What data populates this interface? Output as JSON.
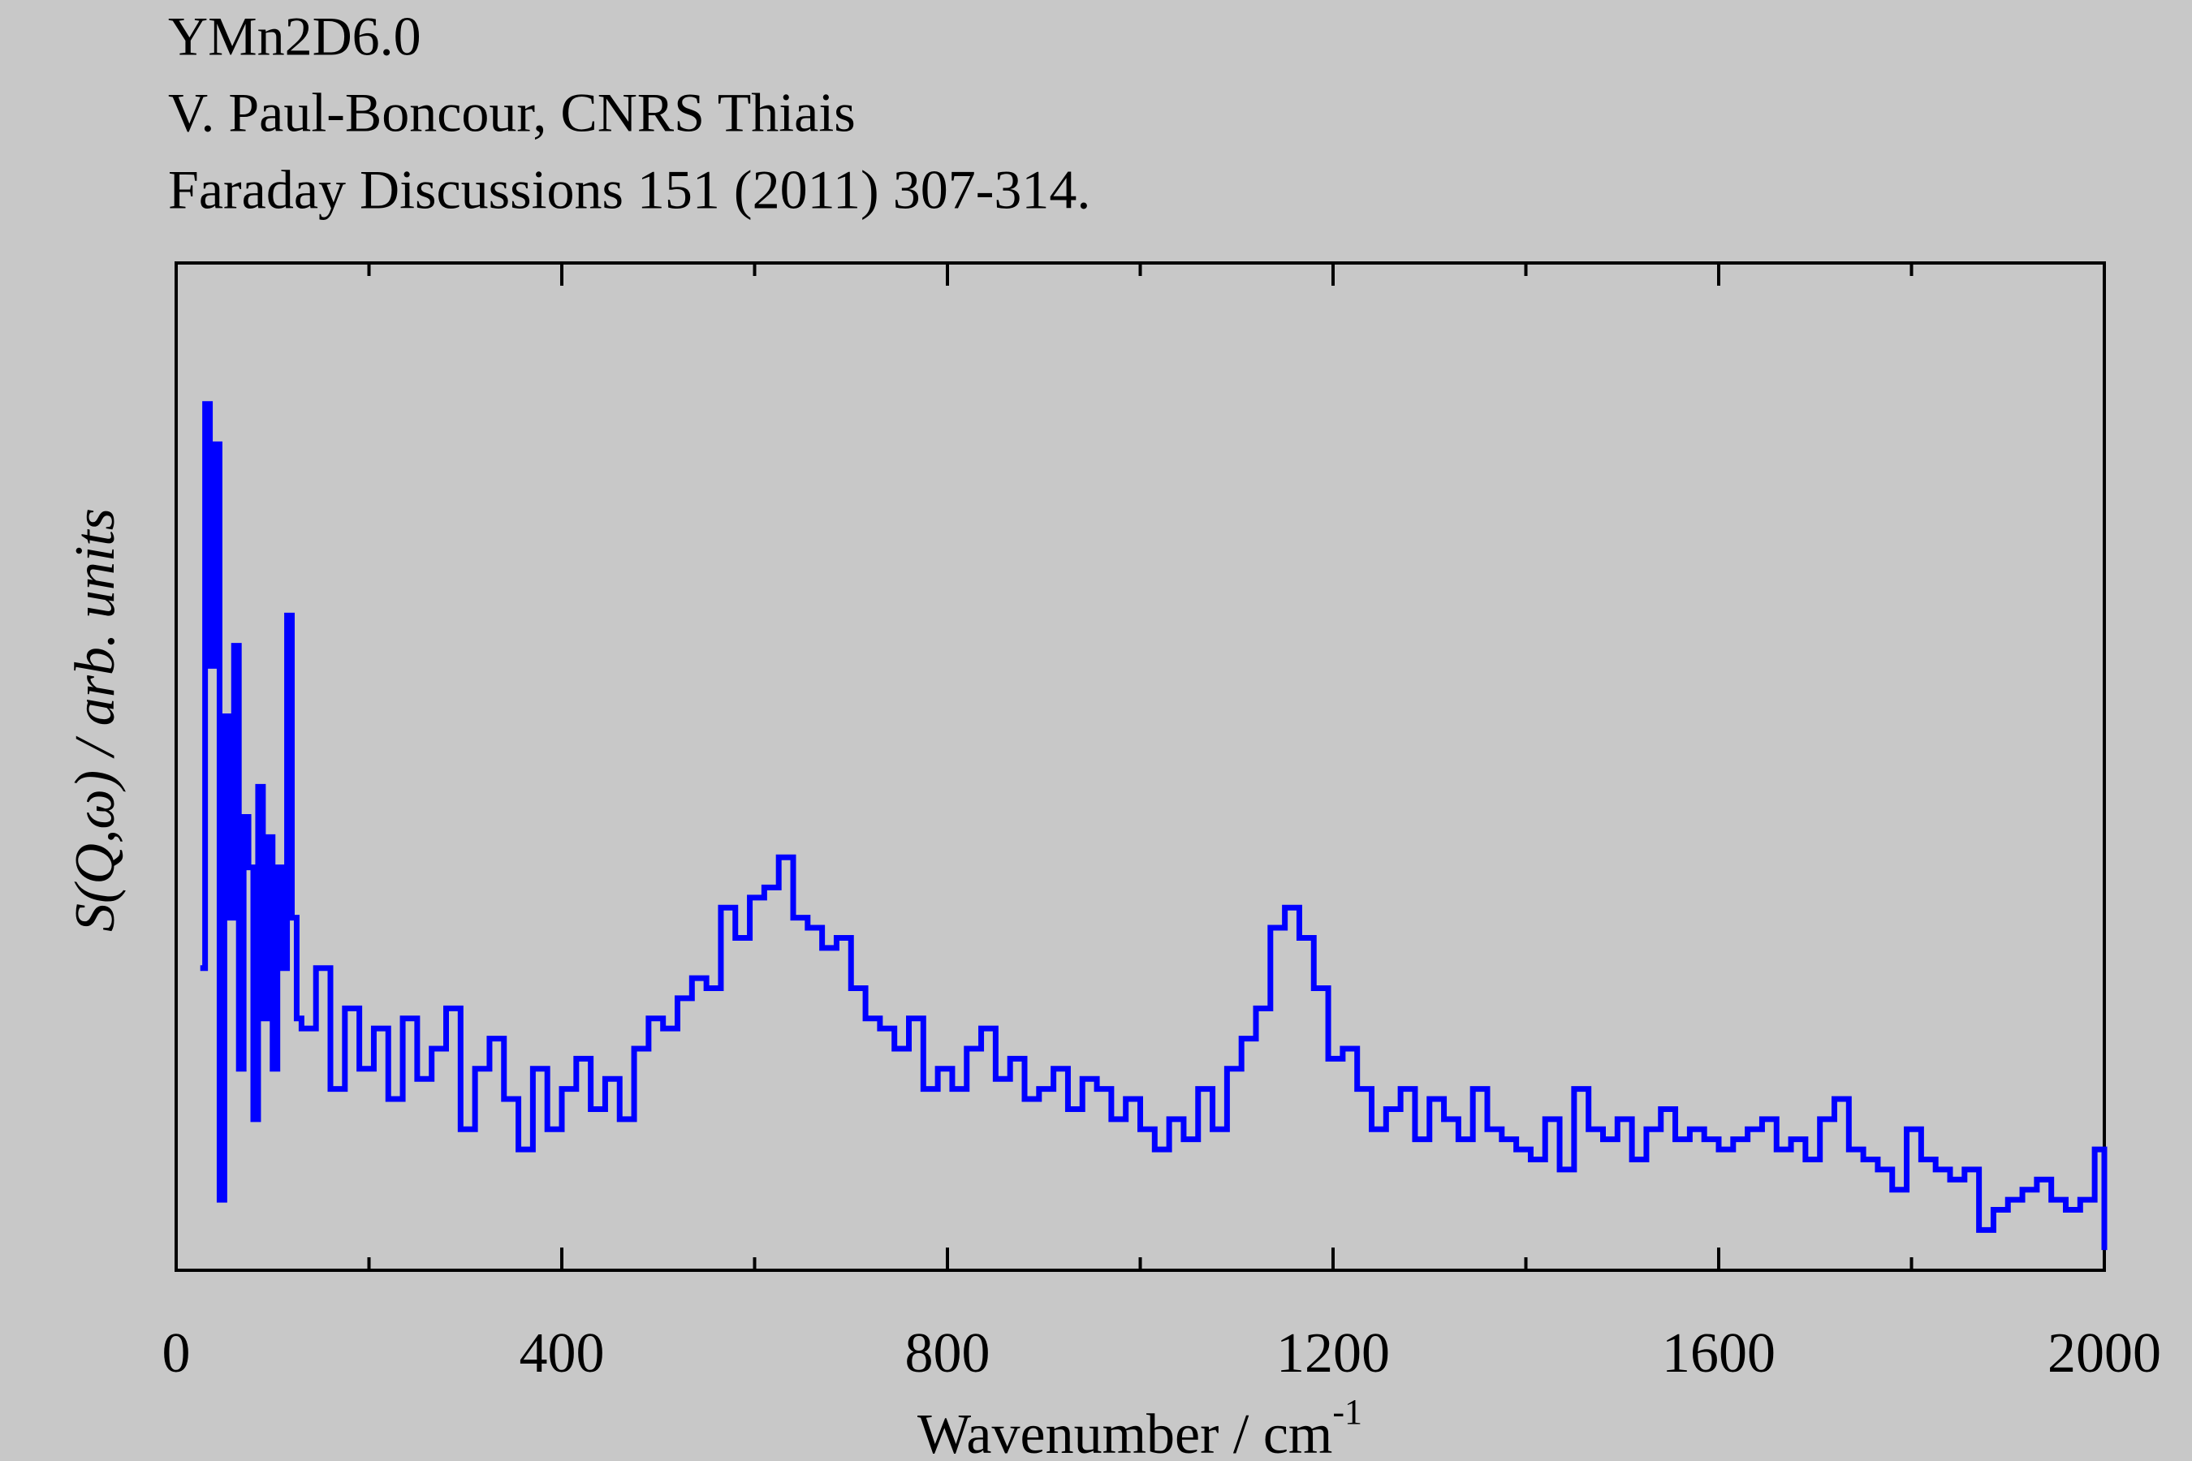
{
  "chart_data": {
    "type": "step",
    "title": "YMn2D6.0",
    "subtitle": [
      "V. Paul-Boncour, CNRS Thiais",
      "Faraday Discussions 151 (2011) 307-314."
    ],
    "xlabel": "Wavenumber / cm",
    "xlabel_superscript": "-1",
    "ylabel": "S(Q,ω) / arb. units",
    "color": "#0000ff",
    "xlim": [
      0,
      2000
    ],
    "ylim": [
      0,
      100
    ],
    "xticks": [
      0,
      400,
      800,
      1200,
      1600,
      2000
    ],
    "xminor": [
      200,
      600,
      1000,
      1400,
      1800
    ],
    "x": [
      25,
      30,
      35,
      40,
      45,
      50,
      55,
      60,
      65,
      70,
      75,
      80,
      85,
      90,
      95,
      100,
      105,
      110,
      115,
      120,
      125,
      130,
      145,
      160,
      175,
      190,
      205,
      220,
      235,
      250,
      265,
      280,
      295,
      310,
      325,
      340,
      355,
      370,
      385,
      400,
      415,
      430,
      445,
      460,
      475,
      490,
      505,
      520,
      535,
      550,
      565,
      580,
      595,
      610,
      625,
      640,
      655,
      670,
      685,
      700,
      715,
      730,
      745,
      760,
      775,
      790,
      805,
      820,
      835,
      850,
      865,
      880,
      895,
      910,
      925,
      940,
      955,
      970,
      985,
      1000,
      1015,
      1030,
      1045,
      1060,
      1075,
      1090,
      1105,
      1120,
      1135,
      1150,
      1165,
      1180,
      1195,
      1210,
      1225,
      1240,
      1255,
      1270,
      1285,
      1300,
      1315,
      1330,
      1345,
      1360,
      1375,
      1390,
      1405,
      1420,
      1435,
      1450,
      1465,
      1480,
      1495,
      1510,
      1525,
      1540,
      1555,
      1570,
      1585,
      1600,
      1615,
      1630,
      1645,
      1660,
      1675,
      1690,
      1705,
      1720,
      1735,
      1750,
      1765,
      1780,
      1795,
      1810,
      1825,
      1840,
      1855,
      1870,
      1885,
      1900,
      1915,
      1930,
      1945,
      1960,
      1975,
      1990,
      2000
    ],
    "values": [
      30,
      86,
      60,
      82,
      7,
      55,
      35,
      62,
      20,
      45,
      40,
      15,
      48,
      25,
      43,
      20,
      40,
      30,
      65,
      35,
      25,
      24,
      30,
      18,
      26,
      20,
      24,
      17,
      25,
      19,
      22,
      26,
      14,
      20,
      23,
      17,
      12,
      20,
      14,
      18,
      21,
      16,
      19,
      15,
      22,
      25,
      24,
      27,
      29,
      28,
      36,
      33,
      37,
      38,
      41,
      35,
      34,
      32,
      33,
      28,
      25,
      24,
      22,
      25,
      18,
      20,
      18,
      22,
      24,
      19,
      21,
      17,
      18,
      20,
      16,
      19,
      18,
      15,
      17,
      14,
      12,
      15,
      13,
      18,
      14,
      20,
      23,
      26,
      34,
      36,
      33,
      28,
      21,
      22,
      18,
      14,
      16,
      18,
      13,
      17,
      15,
      13,
      18,
      14,
      13,
      12,
      11,
      15,
      10,
      18,
      14,
      13,
      15,
      11,
      14,
      16,
      13,
      14,
      13,
      12,
      13,
      14,
      15,
      12,
      13,
      11,
      15,
      17,
      12,
      11,
      10,
      8,
      14,
      11,
      10,
      9,
      10,
      4,
      6,
      7,
      8,
      9,
      7,
      6,
      7,
      12,
      2
    ]
  }
}
